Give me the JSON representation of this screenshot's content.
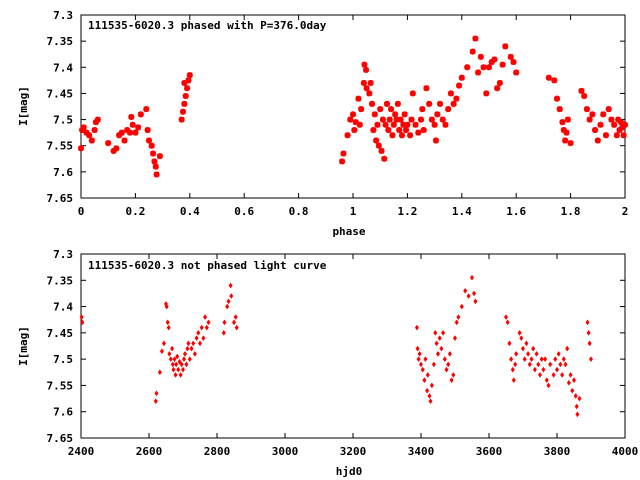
{
  "chart_data": [
    {
      "type": "scatter",
      "title": "111535-6020.3 phased with P=376.0day",
      "xlabel": "phase",
      "ylabel": "I[mag]",
      "xlim": [
        0,
        2
      ],
      "ylim": [
        7.65,
        7.3
      ],
      "y_inverted": true,
      "grid": false,
      "color": "#ff0000",
      "marker": "star",
      "x_ticks": [
        "0",
        "0.2",
        "0.4",
        "0.6",
        "0.8",
        "1",
        "1.2",
        "1.4",
        "1.6",
        "1.8",
        "2"
      ],
      "y_ticks": [
        "7.3",
        "7.35",
        "7.4",
        "7.45",
        "7.5",
        "7.55",
        "7.6",
        "7.65"
      ],
      "points": [
        [
          0.0,
          7.555
        ],
        [
          0.004,
          7.52
        ],
        [
          0.01,
          7.515
        ],
        [
          0.02,
          7.525
        ],
        [
          0.03,
          7.53
        ],
        [
          0.04,
          7.54
        ],
        [
          0.05,
          7.52
        ],
        [
          0.055,
          7.505
        ],
        [
          0.062,
          7.5
        ],
        [
          0.1,
          7.545
        ],
        [
          0.12,
          7.56
        ],
        [
          0.13,
          7.555
        ],
        [
          0.14,
          7.53
        ],
        [
          0.15,
          7.525
        ],
        [
          0.16,
          7.54
        ],
        [
          0.17,
          7.52
        ],
        [
          0.18,
          7.525
        ],
        [
          0.185,
          7.495
        ],
        [
          0.19,
          7.51
        ],
        [
          0.2,
          7.525
        ],
        [
          0.21,
          7.515
        ],
        [
          0.22,
          7.49
        ],
        [
          0.24,
          7.48
        ],
        [
          0.245,
          7.52
        ],
        [
          0.25,
          7.54
        ],
        [
          0.26,
          7.55
        ],
        [
          0.265,
          7.565
        ],
        [
          0.27,
          7.58
        ],
        [
          0.275,
          7.59
        ],
        [
          0.278,
          7.605
        ],
        [
          0.29,
          7.57
        ],
        [
          0.37,
          7.5
        ],
        [
          0.375,
          7.485
        ],
        [
          0.38,
          7.47
        ],
        [
          0.38,
          7.43
        ],
        [
          0.385,
          7.455
        ],
        [
          0.39,
          7.44
        ],
        [
          0.395,
          7.425
        ],
        [
          0.4,
          7.415
        ],
        [
          0.96,
          7.58
        ],
        [
          0.965,
          7.565
        ],
        [
          0.98,
          7.53
        ],
        [
          0.99,
          7.5
        ],
        [
          1.0,
          7.49
        ],
        [
          1.005,
          7.52
        ],
        [
          1.01,
          7.505
        ],
        [
          1.02,
          7.46
        ],
        [
          1.025,
          7.51
        ],
        [
          1.03,
          7.48
        ],
        [
          1.04,
          7.43
        ],
        [
          1.042,
          7.395
        ],
        [
          1.048,
          7.405
        ],
        [
          1.05,
          7.44
        ],
        [
          1.06,
          7.45
        ],
        [
          1.065,
          7.43
        ],
        [
          1.07,
          7.47
        ],
        [
          1.075,
          7.52
        ],
        [
          1.08,
          7.49
        ],
        [
          1.085,
          7.54
        ],
        [
          1.09,
          7.51
        ],
        [
          1.095,
          7.55
        ],
        [
          1.1,
          7.48
        ],
        [
          1.105,
          7.56
        ],
        [
          1.11,
          7.5
        ],
        [
          1.115,
          7.575
        ],
        [
          1.12,
          7.51
        ],
        [
          1.125,
          7.47
        ],
        [
          1.13,
          7.52
        ],
        [
          1.135,
          7.5
        ],
        [
          1.14,
          7.48
        ],
        [
          1.145,
          7.53
        ],
        [
          1.15,
          7.51
        ],
        [
          1.155,
          7.49
        ],
        [
          1.16,
          7.5
        ],
        [
          1.165,
          7.47
        ],
        [
          1.17,
          7.52
        ],
        [
          1.175,
          7.5
        ],
        [
          1.18,
          7.53
        ],
        [
          1.185,
          7.51
        ],
        [
          1.19,
          7.49
        ],
        [
          1.195,
          7.52
        ],
        [
          1.2,
          7.51
        ],
        [
          1.21,
          7.53
        ],
        [
          1.215,
          7.5
        ],
        [
          1.22,
          7.45
        ],
        [
          1.23,
          7.51
        ],
        [
          1.24,
          7.525
        ],
        [
          1.25,
          7.5
        ],
        [
          1.255,
          7.48
        ],
        [
          1.26,
          7.52
        ],
        [
          1.27,
          7.44
        ],
        [
          1.28,
          7.47
        ],
        [
          1.29,
          7.5
        ],
        [
          1.3,
          7.51
        ],
        [
          1.305,
          7.54
        ],
        [
          1.31,
          7.49
        ],
        [
          1.32,
          7.47
        ],
        [
          1.33,
          7.5
        ],
        [
          1.34,
          7.51
        ],
        [
          1.35,
          7.48
        ],
        [
          1.36,
          7.45
        ],
        [
          1.37,
          7.47
        ],
        [
          1.38,
          7.46
        ],
        [
          1.39,
          7.435
        ],
        [
          1.4,
          7.42
        ],
        [
          1.42,
          7.4
        ],
        [
          1.44,
          7.37
        ],
        [
          1.45,
          7.345
        ],
        [
          1.46,
          7.41
        ],
        [
          1.47,
          7.38
        ],
        [
          1.48,
          7.4
        ],
        [
          1.49,
          7.45
        ],
        [
          1.5,
          7.4
        ],
        [
          1.51,
          7.39
        ],
        [
          1.52,
          7.385
        ],
        [
          1.53,
          7.44
        ],
        [
          1.54,
          7.43
        ],
        [
          1.55,
          7.395
        ],
        [
          1.56,
          7.36
        ],
        [
          1.58,
          7.38
        ],
        [
          1.59,
          7.39
        ],
        [
          1.6,
          7.41
        ],
        [
          1.72,
          7.42
        ],
        [
          1.74,
          7.425
        ],
        [
          1.75,
          7.46
        ],
        [
          1.76,
          7.48
        ],
        [
          1.77,
          7.505
        ],
        [
          1.775,
          7.52
        ],
        [
          1.78,
          7.54
        ],
        [
          1.785,
          7.525
        ],
        [
          1.79,
          7.5
        ],
        [
          1.8,
          7.545
        ],
        [
          1.84,
          7.445
        ],
        [
          1.85,
          7.455
        ],
        [
          1.86,
          7.48
        ],
        [
          1.87,
          7.5
        ],
        [
          1.88,
          7.49
        ],
        [
          1.89,
          7.52
        ],
        [
          1.9,
          7.54
        ],
        [
          1.91,
          7.51
        ],
        [
          1.92,
          7.49
        ],
        [
          1.93,
          7.53
        ],
        [
          1.94,
          7.48
        ],
        [
          1.95,
          7.5
        ],
        [
          1.96,
          7.51
        ],
        [
          1.97,
          7.53
        ],
        [
          1.975,
          7.5
        ],
        [
          1.98,
          7.52
        ],
        [
          1.985,
          7.505
        ],
        [
          1.99,
          7.515
        ],
        [
          1.995,
          7.53
        ],
        [
          2.0,
          7.51
        ]
      ]
    },
    {
      "type": "scatter",
      "title": "111535-6020.3 not phased light curve",
      "xlabel": "hjd0",
      "ylabel": "I[mag]",
      "xlim": [
        2400,
        4000
      ],
      "ylim": [
        7.65,
        7.3
      ],
      "y_inverted": true,
      "grid": false,
      "color": "#ff0000",
      "marker": "diamond",
      "x_ticks": [
        "2400",
        "2600",
        "2800",
        "3000",
        "3200",
        "3400",
        "3600",
        "3800",
        "4000"
      ],
      "y_ticks": [
        "7.3",
        "7.35",
        "7.4",
        "7.45",
        "7.5",
        "7.55",
        "7.6",
        "7.65"
      ],
      "points": [
        [
          2402,
          7.42
        ],
        [
          2404,
          7.43
        ],
        [
          2620,
          7.58
        ],
        [
          2622,
          7.565
        ],
        [
          2632,
          7.525
        ],
        [
          2638,
          7.485
        ],
        [
          2644,
          7.47
        ],
        [
          2650,
          7.395
        ],
        [
          2652,
          7.4
        ],
        [
          2655,
          7.43
        ],
        [
          2658,
          7.44
        ],
        [
          2660,
          7.49
        ],
        [
          2664,
          7.5
        ],
        [
          2668,
          7.48
        ],
        [
          2670,
          7.51
        ],
        [
          2672,
          7.52
        ],
        [
          2675,
          7.5
        ],
        [
          2678,
          7.53
        ],
        [
          2680,
          7.51
        ],
        [
          2683,
          7.495
        ],
        [
          2686,
          7.52
        ],
        [
          2690,
          7.505
        ],
        [
          2693,
          7.53
        ],
        [
          2696,
          7.51
        ],
        [
          2700,
          7.52
        ],
        [
          2703,
          7.5
        ],
        [
          2706,
          7.49
        ],
        [
          2710,
          7.51
        ],
        [
          2713,
          7.48
        ],
        [
          2716,
          7.47
        ],
        [
          2720,
          7.5
        ],
        [
          2725,
          7.48
        ],
        [
          2730,
          7.47
        ],
        [
          2735,
          7.49
        ],
        [
          2740,
          7.46
        ],
        [
          2745,
          7.45
        ],
        [
          2750,
          7.47
        ],
        [
          2755,
          7.44
        ],
        [
          2760,
          7.46
        ],
        [
          2765,
          7.42
        ],
        [
          2770,
          7.44
        ],
        [
          2775,
          7.43
        ],
        [
          2820,
          7.45
        ],
        [
          2822,
          7.43
        ],
        [
          2830,
          7.4
        ],
        [
          2834,
          7.39
        ],
        [
          2840,
          7.36
        ],
        [
          2842,
          7.38
        ],
        [
          2850,
          7.43
        ],
        [
          2855,
          7.42
        ],
        [
          2858,
          7.44
        ],
        [
          3388,
          7.44
        ],
        [
          3390,
          7.48
        ],
        [
          3393,
          7.5
        ],
        [
          3396,
          7.49
        ],
        [
          3400,
          7.51
        ],
        [
          3405,
          7.52
        ],
        [
          3410,
          7.54
        ],
        [
          3413,
          7.5
        ],
        [
          3418,
          7.56
        ],
        [
          3420,
          7.53
        ],
        [
          3425,
          7.57
        ],
        [
          3428,
          7.58
        ],
        [
          3432,
          7.55
        ],
        [
          3438,
          7.51
        ],
        [
          3442,
          7.45
        ],
        [
          3446,
          7.47
        ],
        [
          3450,
          7.49
        ],
        [
          3455,
          7.46
        ],
        [
          3460,
          7.48
        ],
        [
          3465,
          7.45
        ],
        [
          3470,
          7.5
        ],
        [
          3475,
          7.52
        ],
        [
          3480,
          7.51
        ],
        [
          3485,
          7.49
        ],
        [
          3490,
          7.54
        ],
        [
          3495,
          7.53
        ],
        [
          3500,
          7.46
        ],
        [
          3505,
          7.43
        ],
        [
          3510,
          7.42
        ],
        [
          3520,
          7.4
        ],
        [
          3530,
          7.37
        ],
        [
          3540,
          7.38
        ],
        [
          3550,
          7.345
        ],
        [
          3556,
          7.375
        ],
        [
          3560,
          7.39
        ],
        [
          3650,
          7.42
        ],
        [
          3655,
          7.43
        ],
        [
          3660,
          7.47
        ],
        [
          3665,
          7.5
        ],
        [
          3670,
          7.52
        ],
        [
          3673,
          7.54
        ],
        [
          3677,
          7.51
        ],
        [
          3680,
          7.49
        ],
        [
          3690,
          7.45
        ],
        [
          3695,
          7.46
        ],
        [
          3700,
          7.48
        ],
        [
          3705,
          7.5
        ],
        [
          3710,
          7.47
        ],
        [
          3715,
          7.49
        ],
        [
          3720,
          7.51
        ],
        [
          3725,
          7.5
        ],
        [
          3730,
          7.48
        ],
        [
          3735,
          7.52
        ],
        [
          3740,
          7.49
        ],
        [
          3745,
          7.51
        ],
        [
          3750,
          7.53
        ],
        [
          3755,
          7.5
        ],
        [
          3760,
          7.52
        ],
        [
          3765,
          7.5
        ],
        [
          3770,
          7.54
        ],
        [
          3775,
          7.55
        ],
        [
          3780,
          7.51
        ],
        [
          3790,
          7.53
        ],
        [
          3795,
          7.5
        ],
        [
          3800,
          7.52
        ],
        [
          3805,
          7.49
        ],
        [
          3810,
          7.51
        ],
        [
          3815,
          7.53
        ],
        [
          3820,
          7.5
        ],
        [
          3825,
          7.51
        ],
        [
          3830,
          7.48
        ],
        [
          3835,
          7.545
        ],
        [
          3840,
          7.53
        ],
        [
          3845,
          7.56
        ],
        [
          3850,
          7.54
        ],
        [
          3855,
          7.57
        ],
        [
          3858,
          7.59
        ],
        [
          3860,
          7.605
        ],
        [
          3866,
          7.575
        ],
        [
          3890,
          7.43
        ],
        [
          3893,
          7.45
        ],
        [
          3896,
          7.47
        ],
        [
          3900,
          7.5
        ]
      ]
    }
  ]
}
